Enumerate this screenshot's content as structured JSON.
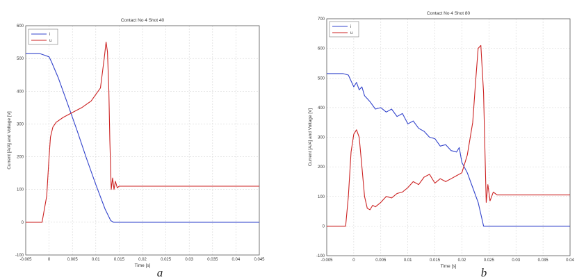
{
  "chart_data": [
    {
      "type": "line",
      "panel_label": "a",
      "title": "Contact No 4 Shot 40",
      "xlabel": "Time [s]",
      "ylabel": "Current [A/A] and Voltage [V]",
      "xlim": [
        -0.005,
        0.045
      ],
      "ylim": [
        -100,
        600
      ],
      "xticks": [
        -0.005,
        0,
        0.005,
        0.01,
        0.015,
        0.02,
        0.025,
        0.03,
        0.035,
        0.04,
        0.045
      ],
      "xtick_labels": [
        "-0.005",
        "0",
        "0.005",
        "0.01",
        "0.015",
        "0.02",
        "0.025",
        "0.03",
        "0.035",
        "0.04",
        "0.045"
      ],
      "yticks": [
        -100,
        0,
        100,
        200,
        300,
        400,
        500,
        600
      ],
      "ytick_labels": [
        "-100",
        "0",
        "100",
        "200",
        "300",
        "400",
        "500",
        "600"
      ],
      "grid": true,
      "legend_position": "top-left",
      "series": [
        {
          "name": "i",
          "color": "#3344cc",
          "x": [
            -0.005,
            -0.002,
            -0.001,
            0.0,
            0.0005,
            0.002,
            0.004,
            0.006,
            0.008,
            0.01,
            0.012,
            0.0132,
            0.0138,
            0.015,
            0.02,
            0.03,
            0.04,
            0.045
          ],
          "y": [
            515,
            515,
            510,
            505,
            490,
            440,
            360,
            280,
            195,
            115,
            40,
            5,
            0,
            0,
            0,
            0,
            0,
            0
          ]
        },
        {
          "name": "u",
          "color": "#cc2222",
          "x": [
            -0.005,
            -0.0015,
            -0.0005,
            0.0,
            0.0003,
            0.0008,
            0.0015,
            0.003,
            0.005,
            0.007,
            0.009,
            0.011,
            0.0118,
            0.0122,
            0.0125,
            0.0128,
            0.013,
            0.0133,
            0.0136,
            0.0139,
            0.0142,
            0.0146,
            0.015,
            0.016,
            0.02,
            0.03,
            0.04,
            0.045
          ],
          "y": [
            0,
            0,
            80,
            200,
            260,
            290,
            305,
            320,
            335,
            350,
            370,
            410,
            500,
            550,
            520,
            400,
            250,
            100,
            135,
            100,
            125,
            105,
            110,
            110,
            110,
            110,
            110,
            110
          ]
        }
      ]
    },
    {
      "type": "line",
      "panel_label": "b",
      "title": "Contact No 4 Shot 80",
      "xlabel": "Time [s]",
      "ylabel": "Current [A/A] and Voltage [V]",
      "xlim": [
        -0.005,
        0.04
      ],
      "ylim": [
        -100,
        700
      ],
      "xticks": [
        -0.005,
        0,
        0.005,
        0.01,
        0.015,
        0.02,
        0.025,
        0.03,
        0.035,
        0.04
      ],
      "xtick_labels": [
        "-0.005",
        "0",
        "0.005",
        "0.01",
        "0.015",
        "0.02",
        "0.025",
        "0.03",
        "0.035",
        "0.04"
      ],
      "yticks": [
        -100,
        0,
        100,
        200,
        300,
        400,
        500,
        600,
        700
      ],
      "ytick_labels": [
        "-100",
        "0",
        "100",
        "200",
        "300",
        "400",
        "500",
        "600",
        "700"
      ],
      "grid": true,
      "legend_position": "top-left",
      "series": [
        {
          "name": "i",
          "color": "#3344cc",
          "x": [
            -0.005,
            -0.002,
            -0.001,
            0.0,
            0.0005,
            0.001,
            0.0015,
            0.002,
            0.003,
            0.004,
            0.005,
            0.006,
            0.007,
            0.008,
            0.009,
            0.01,
            0.011,
            0.012,
            0.013,
            0.014,
            0.015,
            0.016,
            0.017,
            0.018,
            0.019,
            0.0195,
            0.02,
            0.021,
            0.022,
            0.023,
            0.0235,
            0.024,
            0.025,
            0.03,
            0.04
          ],
          "y": [
            515,
            515,
            510,
            470,
            485,
            460,
            470,
            440,
            420,
            395,
            400,
            385,
            395,
            370,
            380,
            345,
            355,
            330,
            320,
            300,
            295,
            270,
            275,
            255,
            250,
            265,
            215,
            180,
            130,
            80,
            40,
            0,
            0,
            0,
            0
          ]
        },
        {
          "name": "u",
          "color": "#cc2222",
          "x": [
            -0.005,
            -0.0015,
            -0.001,
            -0.0005,
            0.0,
            0.0005,
            0.001,
            0.0015,
            0.002,
            0.0025,
            0.003,
            0.0035,
            0.004,
            0.005,
            0.006,
            0.007,
            0.008,
            0.009,
            0.01,
            0.011,
            0.012,
            0.013,
            0.014,
            0.015,
            0.016,
            0.017,
            0.018,
            0.019,
            0.02,
            0.021,
            0.022,
            0.0225,
            0.023,
            0.0235,
            0.024,
            0.0242,
            0.0245,
            0.0248,
            0.0252,
            0.0258,
            0.0265,
            0.03,
            0.04
          ],
          "y": [
            0,
            0,
            100,
            250,
            310,
            325,
            300,
            200,
            100,
            60,
            55,
            70,
            65,
            80,
            100,
            95,
            110,
            115,
            130,
            150,
            140,
            165,
            175,
            145,
            160,
            150,
            160,
            170,
            180,
            240,
            350,
            480,
            600,
            610,
            450,
            300,
            80,
            140,
            85,
            115,
            105,
            105,
            105
          ]
        }
      ]
    }
  ]
}
